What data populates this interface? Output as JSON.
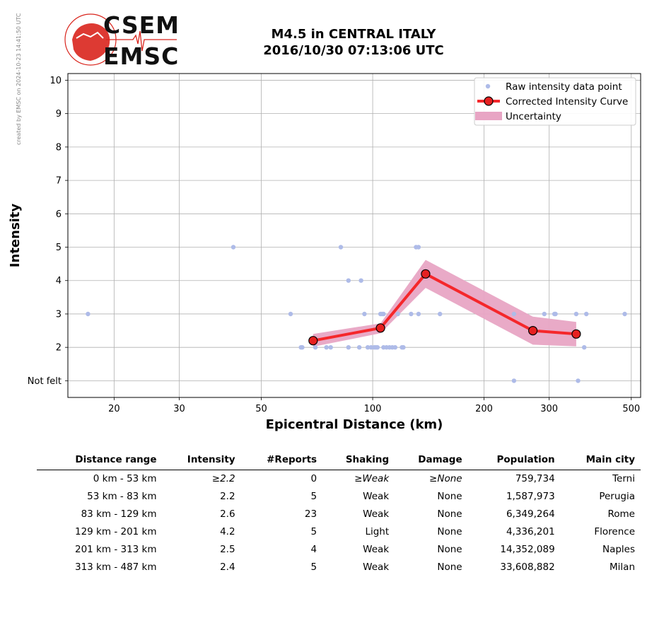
{
  "watermark": "created by EMSC on 2024-10-23 14:41:50 UTC",
  "logo": {
    "top": "CSEM",
    "bottom": "EMSC"
  },
  "title": {
    "line1": "M4.5 in CENTRAL ITALY",
    "line2": "2016/10/30 07:13:06 UTC"
  },
  "colors": {
    "raw": "#aebbe8",
    "curve": "#f5272b",
    "band": "#e8a5c4",
    "marker": "#e62020"
  },
  "chart_data": {
    "type": "scatter",
    "title": "",
    "xlabel": "Epicentral Distance (km)",
    "ylabel": "Intensity",
    "x_scale": "log",
    "xlim": [
      15,
      530
    ],
    "ylim": [
      0.5,
      10.2
    ],
    "xticks": [
      20,
      30,
      50,
      100,
      200,
      300,
      500
    ],
    "ytick_values": [
      1,
      2,
      3,
      4,
      5,
      6,
      7,
      8,
      9,
      10
    ],
    "ytick_labels": [
      "Not felt",
      "2",
      "3",
      "4",
      "5",
      "6",
      "7",
      "8",
      "9",
      "10"
    ],
    "grid": true,
    "legend_position": "top-right",
    "legend": [
      "Raw intensity data point",
      "Corrected Intensity Curve",
      "Uncertainty"
    ],
    "raw_points": [
      [
        17,
        3
      ],
      [
        42,
        5
      ],
      [
        60,
        3
      ],
      [
        64,
        2
      ],
      [
        64.5,
        2
      ],
      [
        70,
        2
      ],
      [
        75,
        2
      ],
      [
        77,
        2
      ],
      [
        82,
        5
      ],
      [
        86,
        4
      ],
      [
        86,
        2
      ],
      [
        92,
        2
      ],
      [
        93,
        4
      ],
      [
        95,
        3
      ],
      [
        97,
        2
      ],
      [
        99,
        2
      ],
      [
        101,
        2
      ],
      [
        102,
        2
      ],
      [
        103,
        2
      ],
      [
        105,
        3
      ],
      [
        106,
        3
      ],
      [
        107,
        3
      ],
      [
        107,
        2
      ],
      [
        109,
        2
      ],
      [
        111,
        2
      ],
      [
        113,
        2
      ],
      [
        115,
        2
      ],
      [
        117,
        3
      ],
      [
        120,
        2
      ],
      [
        121,
        2
      ],
      [
        127,
        3
      ],
      [
        131,
        5
      ],
      [
        133,
        3
      ],
      [
        133,
        5
      ],
      [
        152,
        3
      ],
      [
        241,
        3
      ],
      [
        241,
        1
      ],
      [
        291,
        3
      ],
      [
        310,
        3
      ],
      [
        312,
        3
      ],
      [
        355,
        3
      ],
      [
        359,
        1
      ],
      [
        373,
        2
      ],
      [
        378,
        3
      ],
      [
        480,
        3
      ]
    ],
    "curve": {
      "x": [
        69,
        105,
        139,
        271,
        355
      ],
      "y": [
        2.2,
        2.58,
        4.2,
        2.5,
        2.4
      ],
      "upper": [
        2.4,
        2.72,
        4.62,
        2.92,
        2.76
      ],
      "lower": [
        2.02,
        2.42,
        3.78,
        2.08,
        2.03
      ]
    }
  },
  "table": {
    "headers": [
      "Distance range",
      "Intensity",
      "#Reports",
      "Shaking",
      "Damage",
      "Population",
      "Main city"
    ],
    "rows": [
      [
        "0 km -   53 km",
        "≥2.2",
        "0",
        "≥Weak",
        "≥None",
        "759,734",
        "Terni"
      ],
      [
        "53 km -   83 km",
        "2.2",
        "5",
        "Weak",
        "None",
        "1,587,973",
        "Perugia"
      ],
      [
        "83 km -  129 km",
        "2.6",
        "23",
        "Weak",
        "None",
        "6,349,264",
        "Rome"
      ],
      [
        "129 km -  201 km",
        "4.2",
        "5",
        "Light",
        "None",
        "4,336,201",
        "Florence"
      ],
      [
        "201 km -  313 km",
        "2.5",
        "4",
        "Weak",
        "None",
        "14,352,089",
        "Naples"
      ],
      [
        "313 km -  487 km",
        "2.4",
        "5",
        "Weak",
        "None",
        "33,608,882",
        "Milan"
      ]
    ]
  }
}
